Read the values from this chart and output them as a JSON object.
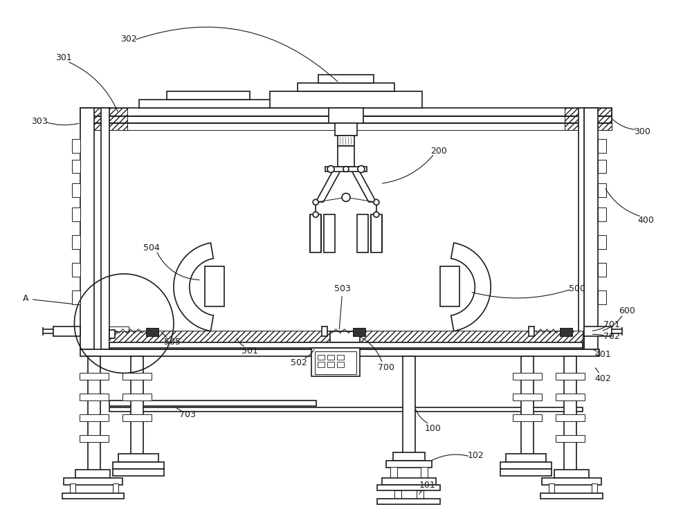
{
  "bg_color": "#ffffff",
  "line_color": "#1a1a1a",
  "fig_width": 10.0,
  "fig_height": 7.59,
  "lw_main": 1.2,
  "lw_thin": 0.7,
  "lw_thick": 2.0
}
